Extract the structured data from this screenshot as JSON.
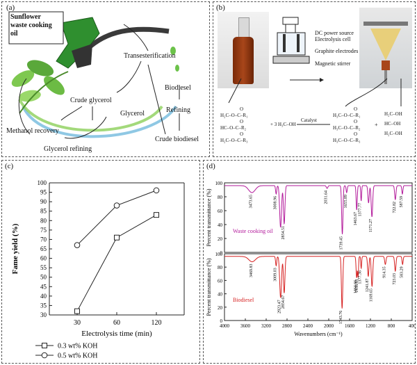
{
  "panels": {
    "a": {
      "tag": "(a)",
      "box_text": "Sunflower waste cooking oil",
      "box_lines": [
        "Sunflower",
        "waste cooking",
        "oil"
      ],
      "steps": {
        "transesterification": "Transesterification",
        "crude_glycerol": "Crude glycerol",
        "glycerol": "Glycerol",
        "biodiesel": "Biodiesel",
        "refining": "Refining",
        "crude_biodiesel": "Crude biodiesel",
        "methanol_recovery": "Methanol recovery",
        "glycerol_refining": "Glycerol refining"
      }
    },
    "b": {
      "tag": "(b)",
      "apparatus": {
        "dc": "DC power source",
        "cell": "Electrolysis cell",
        "electrodes": "Graphite electrodes",
        "stirrer": "Magnetic stirrer"
      },
      "reaction": {
        "plus_methanol": "+ 3 H₃C–OH",
        "catalyst": "Catalyst",
        "plus": "+",
        "r1": "O–C–R₁",
        "r2": "HC–O–C–R₂",
        "r3": "O–C–R₃",
        "p1": "H₃C–O–C–R₁",
        "p2": "H₃C–O–C–R₂",
        "p3": "H₃C–O–C–R₃",
        "g1": "H₂C–OH",
        "g2": "HC–OH",
        "g3": "H₂C–OH"
      }
    },
    "c": {
      "tag": "(c)"
    },
    "d": {
      "tag": "(d)"
    }
  },
  "chart_data": [
    {
      "type": "line",
      "xlabel": "Electrolysis time (min)",
      "ylabel": "Fame yield (%)",
      "categories": [
        "30",
        "60",
        "120"
      ],
      "ylim": [
        30,
        100
      ],
      "yticks": [
        30,
        35,
        40,
        45,
        50,
        55,
        60,
        65,
        70,
        75,
        80,
        85,
        90,
        95,
        100
      ],
      "grid": false,
      "legend_position": "bottom",
      "series": [
        {
          "name": "0.3 wt% KOH",
          "marker": "square",
          "values": [
            32,
            71,
            83
          ]
        },
        {
          "name": "0.5 wt% KOH",
          "marker": "circle",
          "values": [
            67,
            88,
            96
          ]
        }
      ]
    },
    {
      "type": "line",
      "xlabel": "Wavenumbers (cm⁻¹)",
      "ylabel": "Percent transmittance (%)",
      "xlim": [
        4000,
        400
      ],
      "xticks": [
        4000,
        3600,
        3200,
        2800,
        2400,
        2000,
        1600,
        1200,
        800,
        400
      ],
      "ylim": [
        0,
        100
      ],
      "yticks": [
        0,
        20,
        40,
        60,
        80,
        100
      ],
      "series": [
        {
          "name": "Waste cooking oil",
          "color": "#b2189a",
          "baseline": 96,
          "peaks": [
            {
              "x": 3473.65,
              "depth": 10,
              "w": 90,
              "label": "3473.65"
            },
            {
              "x": 3008.96,
              "depth": 12,
              "w": 15,
              "label": "3008.96"
            },
            {
              "x": 2924,
              "depth": 60,
              "w": 25,
              "label": ""
            },
            {
              "x": 2854.51,
              "depth": 55,
              "w": 20,
              "label": "2854.51"
            },
            {
              "x": 2031.64,
              "depth": 4,
              "w": 20,
              "label": "2031.64"
            },
            {
              "x": 1739.45,
              "depth": 70,
              "w": 18,
              "label": "1739.45"
            },
            {
              "x": 1655.89,
              "depth": 10,
              "w": 15,
              "label": "1655.89"
            },
            {
              "x": 1463.67,
              "depth": 35,
              "w": 15,
              "label": "1463.67"
            },
            {
              "x": 1377.77,
              "depth": 22,
              "w": 12,
              "label": "1377.77"
            },
            {
              "x": 1236,
              "depth": 25,
              "w": 18,
              "label": ""
            },
            {
              "x": 1171.27,
              "depth": 45,
              "w": 20,
              "label": "1171.27"
            },
            {
              "x": 722.82,
              "depth": 20,
              "w": 18,
              "label": "722.82"
            },
            {
              "x": 587.59,
              "depth": 12,
              "w": 15,
              "label": "587.59"
            }
          ]
        },
        {
          "name": "Biodiesel",
          "color": "#d62020",
          "baseline": 96,
          "peaks": [
            {
              "x": 3469.83,
              "depth": 8,
              "w": 90,
              "label": "3469.83"
            },
            {
              "x": 3009.03,
              "depth": 14,
              "w": 15,
              "label": "3009.03"
            },
            {
              "x": 2923.47,
              "depth": 62,
              "w": 25,
              "label": "2923.47"
            },
            {
              "x": 2854.67,
              "depth": 55,
              "w": 20,
              "label": "2854.67"
            },
            {
              "x": 1743.76,
              "depth": 78,
              "w": 18,
              "label": "1743.76"
            },
            {
              "x": 1464.66,
              "depth": 32,
              "w": 15,
              "label": "1464.66"
            },
            {
              "x": 1436.93,
              "depth": 30,
              "w": 12,
              "label": "1436.93"
            },
            {
              "x": 1377.36,
              "depth": 18,
              "w": 12,
              "label": "1377.36"
            },
            {
              "x": 1241.87,
              "depth": 30,
              "w": 18,
              "label": "1241.87"
            },
            {
              "x": 1169.65,
              "depth": 45,
              "w": 20,
              "label": "1169.65"
            },
            {
              "x": 914.35,
              "depth": 12,
              "w": 18,
              "label": "914.35"
            },
            {
              "x": 723.03,
              "depth": 22,
              "w": 18,
              "label": "723.03"
            },
            {
              "x": 583.29,
              "depth": 12,
              "w": 15,
              "label": "583.29"
            }
          ]
        }
      ]
    }
  ]
}
